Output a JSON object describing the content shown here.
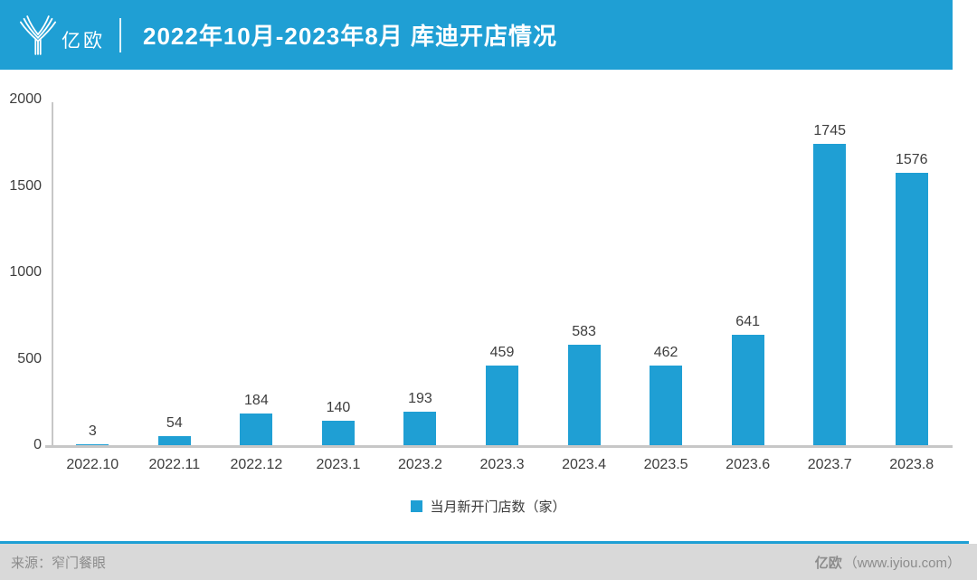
{
  "header": {
    "logo_text": "亿欧",
    "title": "2022年10月-2023年8月 库迪开店情况"
  },
  "chart_data": {
    "type": "bar",
    "title": "2022年10月-2023年8月 库迪开店情况",
    "categories": [
      "2022.10",
      "2022.11",
      "2022.12",
      "2023.1",
      "2023.2",
      "2023.3",
      "2023.4",
      "2023.5",
      "2023.6",
      "2023.7",
      "2023.8"
    ],
    "values": [
      3,
      54,
      184,
      140,
      193,
      459,
      583,
      462,
      641,
      1745,
      1576
    ],
    "series_name": "当月新开门店数（家）",
    "xlabel": "",
    "ylabel": "",
    "ylim": [
      0,
      2000
    ],
    "yticks": [
      0,
      500,
      1000,
      1500,
      2000
    ],
    "grid": false,
    "legend_position": "bottom",
    "bar_color": "#1F9FD4"
  },
  "legend": {
    "label": "当月新开门店数（家）"
  },
  "footer": {
    "source": "来源：窄门餐眼",
    "brand": "亿欧",
    "site": "（www.iyiou.com）"
  },
  "colors": {
    "accent": "#1F9FD4",
    "axis": "#C7C7C7",
    "text_dark": "#3D3D3D",
    "footer_bg": "#D9D9D9",
    "footer_text": "#8C8C8C"
  }
}
